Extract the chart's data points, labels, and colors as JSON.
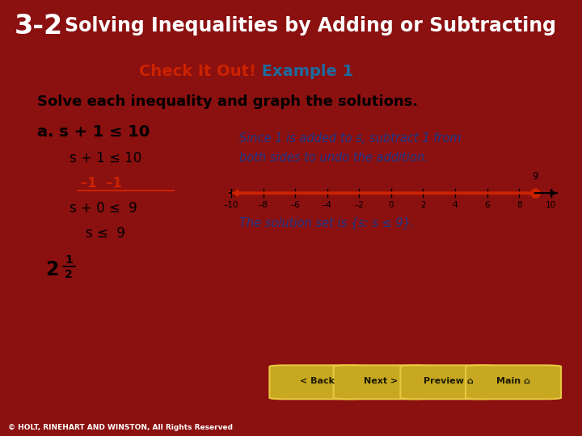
{
  "header_32_text": "3-2",
  "header_title": "Solving Inequalities by Adding or Subtracting",
  "header_bg": "#5C0A0A",
  "header_text_color": "#FFFFFF",
  "slide_bg": "#FFFFFF",
  "outer_bg": "#8B1010",
  "check_it_out_color": "#CC2200",
  "example_color": "#1E6B9E",
  "check_it_out_text": "Check It Out!",
  "example_text": " Example 1",
  "solve_text": "Solve each inequality and graph the solutions.",
  "solve_color": "#000000",
  "step_a_bold": "a. s + 1 ≤ 10",
  "step1": "s + 1 ≤ 10",
  "step2_sub": "–1  –1",
  "step3": "s + 0 ≤  9",
  "step4": "s ≤  9",
  "step_sub_color": "#CC2200",
  "step_color": "#000000",
  "note_line1": "Since 1 is added to s, subtract 1 from",
  "note_line2": "both sides to undo the addition.",
  "note_color": "#1E3A8A",
  "solution_text": "The solution set is {s: s ≤ 9}.",
  "solution_color": "#1E3A8A",
  "number_line_min": -10,
  "number_line_max": 10,
  "number_line_solution": 9,
  "number_line_arrow_color": "#CC2200",
  "number_line_dot_color": "#CC2200",
  "tick_labels": [
    "–10",
    "–8",
    "–6",
    "–4",
    "–2",
    "0",
    "2",
    "4",
    "6",
    "8",
    "10"
  ],
  "tick_values": [
    -10,
    -8,
    -6,
    -4,
    -2,
    0,
    2,
    4,
    6,
    8,
    10
  ],
  "footer_text": "© HOLT, RINEHART AND WINSTON, All Rights Reserved",
  "footer_color": "#FFFFFF",
  "footer_bg": "#000000",
  "buttons": [
    "< Back",
    "Next >",
    "Preview ⌂",
    "Main ⌂"
  ],
  "fraction_whole": "2",
  "fraction_num": "1",
  "fraction_den": "2"
}
